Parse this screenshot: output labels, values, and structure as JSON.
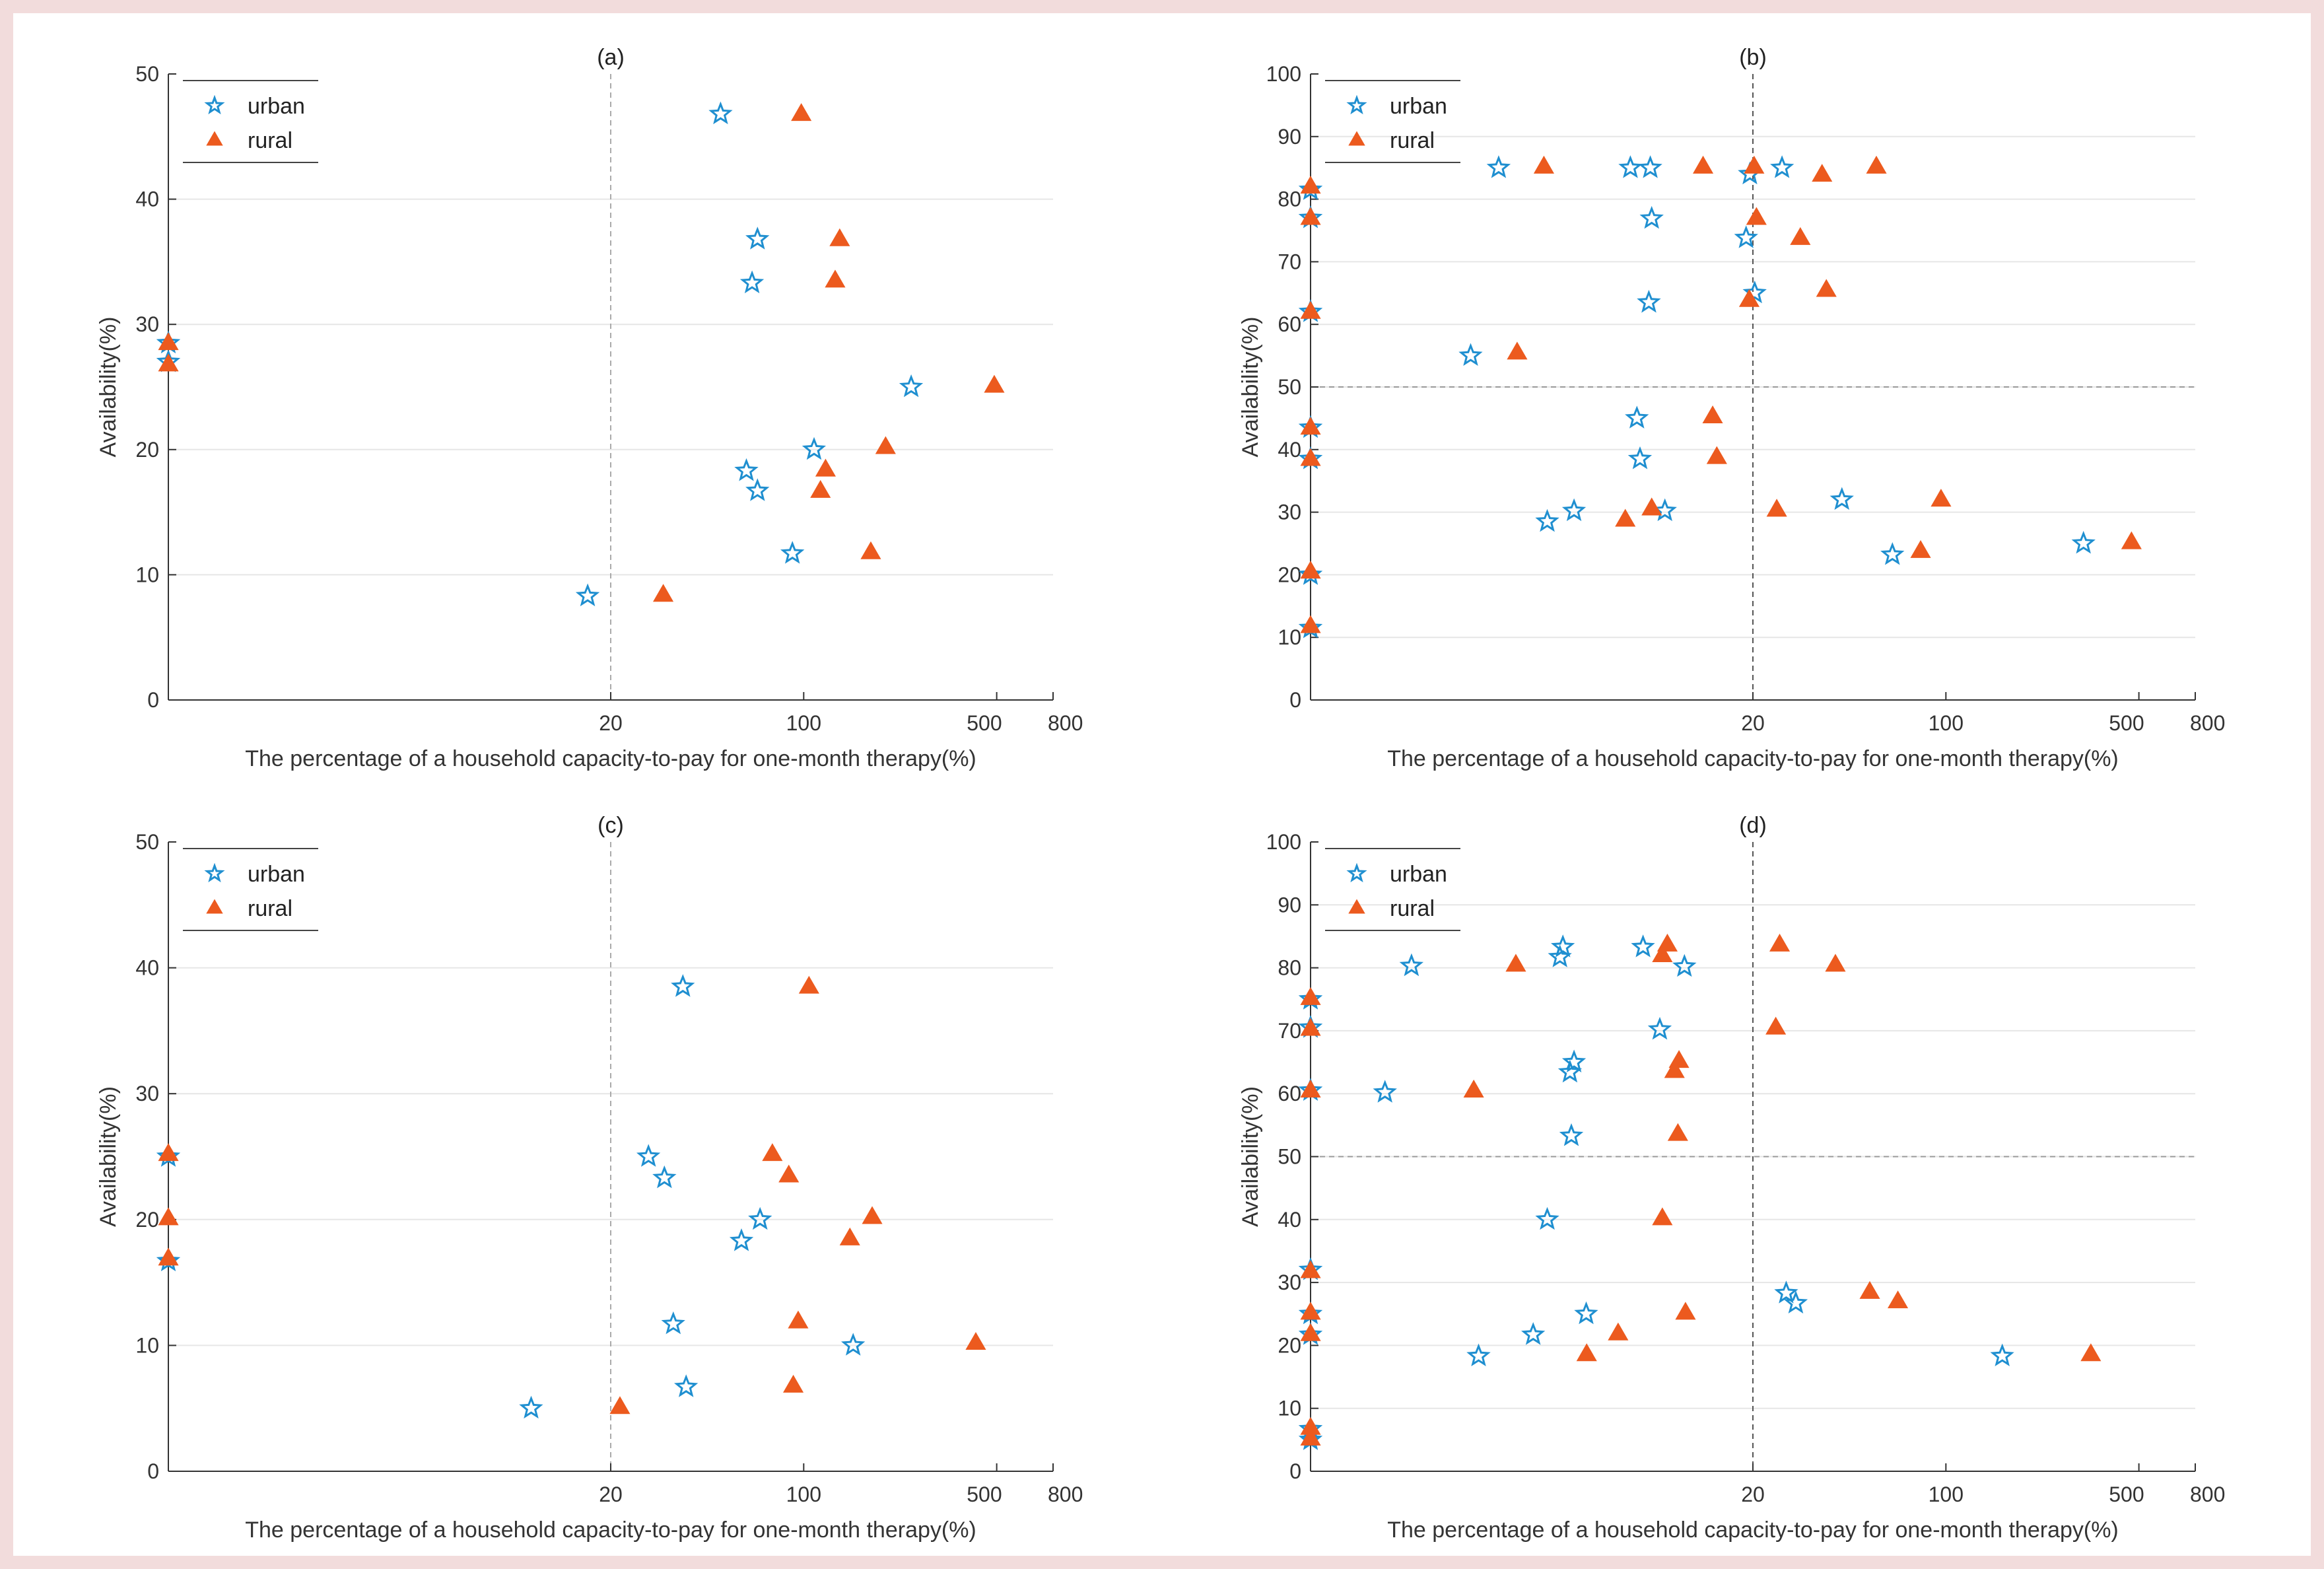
{
  "colors": {
    "background": "#f2dcdc",
    "urban": "#1f8fd0",
    "rural": "#ec5a1e",
    "grid": "#e6e6e6",
    "axis": "#333333"
  },
  "chart_data": [
    {
      "type": "scatter",
      "title": "(a)",
      "xlabel": "The percentage of a household capacity-to-pay for one-month therapy(%)",
      "ylabel": "Availability(%)",
      "xscale": "log",
      "xlim": [
        0.5,
        800
      ],
      "ylim": [
        0,
        50
      ],
      "xticks": [
        20,
        100,
        500,
        800
      ],
      "yticks": [
        0,
        10,
        20,
        30,
        40,
        50
      ],
      "xref": 20,
      "yref": null,
      "legend": [
        "urban",
        "rural"
      ],
      "legend_position": "top-left",
      "series": [
        {
          "name": "urban",
          "marker": "star",
          "points": [
            [
              0.5,
              27.0
            ],
            [
              0.5,
              28.5
            ],
            [
              16.5,
              8.3
            ],
            [
              50,
              46.8
            ],
            [
              68,
              36.8
            ],
            [
              65,
              33.3
            ],
            [
              62,
              18.3
            ],
            [
              68,
              16.7
            ],
            [
              91,
              11.7
            ],
            [
              109,
              20.0
            ],
            [
              245,
              25.0
            ]
          ]
        },
        {
          "name": "rural",
          "marker": "triangle",
          "points": [
            [
              0.5,
              26.8
            ],
            [
              0.5,
              28.5
            ],
            [
              31,
              8.4
            ],
            [
              98,
              46.8
            ],
            [
              135,
              36.8
            ],
            [
              130,
              33.5
            ],
            [
              198,
              20.2
            ],
            [
              120,
              18.4
            ],
            [
              115,
              16.7
            ],
            [
              175,
              11.8
            ],
            [
              490,
              25.1
            ]
          ]
        }
      ]
    },
    {
      "type": "scatter",
      "title": "(b)",
      "xlabel": "The percentage of a household capacity-to-pay for one-month therapy(%)",
      "ylabel": "Availability(%)",
      "xscale": "log",
      "xlim": [
        0.5,
        800
      ],
      "ylim": [
        0,
        100
      ],
      "xticks": [
        20,
        100,
        500,
        800
      ],
      "yticks": [
        0,
        10,
        20,
        30,
        40,
        50,
        60,
        70,
        80,
        90,
        100
      ],
      "xref": 20,
      "yref": 50,
      "legend": [
        "urban",
        "rural"
      ],
      "legend_position": "top-left",
      "series": [
        {
          "name": "urban",
          "marker": "star",
          "points": [
            [
              0.5,
              81.5
            ],
            [
              0.5,
              77.0
            ],
            [
              0.5,
              62.0
            ],
            [
              0.5,
              43.5
            ],
            [
              0.5,
              38.5
            ],
            [
              0.5,
              20.0
            ],
            [
              0.5,
              11.5
            ],
            [
              2.4,
              85.0
            ],
            [
              7.2,
              85.0
            ],
            [
              8.5,
              85.0
            ],
            [
              8.6,
              76.9
            ],
            [
              8.4,
              63.5
            ],
            [
              1.9,
              55.0
            ],
            [
              7.6,
              45.0
            ],
            [
              7.8,
              38.5
            ],
            [
              3.6,
              28.5
            ],
            [
              4.5,
              30.2
            ],
            [
              9.6,
              30.2
            ],
            [
              19.5,
              84.0
            ],
            [
              18.9,
              73.8
            ],
            [
              20.3,
              65.0
            ],
            [
              25.5,
              85.0
            ],
            [
              42,
              32.0
            ],
            [
              64,
              23.2
            ],
            [
              315,
              25.0
            ]
          ]
        },
        {
          "name": "rural",
          "marker": "triangle",
          "points": [
            [
              0.5,
              82.0
            ],
            [
              0.5,
              77.0
            ],
            [
              0.5,
              62.0
            ],
            [
              0.5,
              43.5
            ],
            [
              0.5,
              38.5
            ],
            [
              0.5,
              20.5
            ],
            [
              0.5,
              11.8
            ],
            [
              3.5,
              85.2
            ],
            [
              13.2,
              85.2
            ],
            [
              20.2,
              85.2
            ],
            [
              56,
              85.2
            ],
            [
              35.6,
              83.9
            ],
            [
              20.6,
              77.0
            ],
            [
              29.7,
              73.8
            ],
            [
              19.4,
              63.9
            ],
            [
              36.9,
              65.5
            ],
            [
              2.8,
              55.5
            ],
            [
              14.3,
              45.3
            ],
            [
              14.8,
              38.8
            ],
            [
              6.9,
              28.8
            ],
            [
              8.6,
              30.6
            ],
            [
              24.4,
              30.4
            ],
            [
              96,
              32.0
            ],
            [
              81,
              23.8
            ],
            [
              470,
              25.2
            ]
          ]
        }
      ]
    },
    {
      "type": "scatter",
      "title": "(c)",
      "xlabel": "The percentage of a household capacity-to-pay for one-month therapy(%)",
      "ylabel": "Availability(%)",
      "xscale": "log",
      "xlim": [
        0.5,
        800
      ],
      "ylim": [
        0,
        50
      ],
      "xticks": [
        20,
        100,
        500,
        800
      ],
      "yticks": [
        0,
        10,
        20,
        30,
        40,
        50
      ],
      "xref": 20,
      "yref": null,
      "legend": [
        "urban",
        "rural"
      ],
      "legend_position": "top-left",
      "series": [
        {
          "name": "urban",
          "marker": "star",
          "points": [
            [
              0.5,
              25.0
            ],
            [
              0.5,
              16.7
            ],
            [
              10.3,
              5.0
            ],
            [
              36.5,
              38.5
            ],
            [
              27.4,
              25.0
            ],
            [
              31.3,
              23.3
            ],
            [
              59.5,
              18.3
            ],
            [
              69.5,
              20.0
            ],
            [
              33.7,
              11.7
            ],
            [
              37.5,
              6.7
            ],
            [
              151,
              10.0
            ]
          ]
        },
        {
          "name": "rural",
          "marker": "triangle",
          "points": [
            [
              0.5,
              25.2
            ],
            [
              0.5,
              20.1
            ],
            [
              0.5,
              16.9
            ],
            [
              21.6,
              5.1
            ],
            [
              104.5,
              38.5
            ],
            [
              77,
              25.2
            ],
            [
              88.3,
              23.5
            ],
            [
              177,
              20.2
            ],
            [
              147,
              18.5
            ],
            [
              95.5,
              11.9
            ],
            [
              91.7,
              6.8
            ],
            [
              420,
              10.2
            ]
          ]
        }
      ]
    },
    {
      "type": "scatter",
      "title": "(d)",
      "xlabel": "The percentage of a household capacity-to-pay for one-month therapy(%)",
      "ylabel": "Availability(%)",
      "xscale": "log",
      "xlim": [
        0.5,
        800
      ],
      "ylim": [
        0,
        100
      ],
      "xticks": [
        20,
        100,
        500,
        800
      ],
      "yticks": [
        0,
        10,
        20,
        30,
        40,
        50,
        60,
        70,
        80,
        90,
        100
      ],
      "xref": 20,
      "yref": 50,
      "legend": [
        "urban",
        "rural"
      ],
      "legend_position": "top-left",
      "series": [
        {
          "name": "urban",
          "marker": "star",
          "points": [
            [
              0.5,
              75.0
            ],
            [
              0.5,
              70.5
            ],
            [
              0.5,
              60.5
            ],
            [
              0.5,
              32.0
            ],
            [
              0.5,
              25.0
            ],
            [
              0.5,
              21.7
            ],
            [
              0.5,
              6.7
            ],
            [
              0.5,
              5.0
            ],
            [
              1.16,
              80.3
            ],
            [
              0.93,
              60.2
            ],
            [
              4.1,
              83.3
            ],
            [
              4.0,
              81.7
            ],
            [
              8.0,
              83.3
            ],
            [
              11.3,
              80.2
            ],
            [
              9.2,
              70.2
            ],
            [
              4.5,
              65.0
            ],
            [
              4.35,
              63.4
            ],
            [
              4.4,
              53.3
            ],
            [
              3.6,
              40.0
            ],
            [
              4.98,
              25.0
            ],
            [
              2.03,
              18.3
            ],
            [
              3.2,
              21.7
            ],
            [
              26.4,
              28.3
            ],
            [
              28.6,
              26.7
            ],
            [
              160,
              18.3
            ]
          ]
        },
        {
          "name": "rural",
          "marker": "triangle",
          "points": [
            [
              0.5,
              75.2
            ],
            [
              0.5,
              70.3
            ],
            [
              0.5,
              60.5
            ],
            [
              0.5,
              31.8
            ],
            [
              0.5,
              25.2
            ],
            [
              0.5,
              21.8
            ],
            [
              0.5,
              6.9
            ],
            [
              0.5,
              5.2
            ],
            [
              2.77,
              80.5
            ],
            [
              1.95,
              60.5
            ],
            [
              9.8,
              83.7
            ],
            [
              9.4,
              82.0
            ],
            [
              25.0,
              83.7
            ],
            [
              39.8,
              80.5
            ],
            [
              24.2,
              70.5
            ],
            [
              10.8,
              65.2
            ],
            [
              10.4,
              63.6
            ],
            [
              10.7,
              53.6
            ],
            [
              9.4,
              40.2
            ],
            [
              11.4,
              25.2
            ],
            [
              5.0,
              18.6
            ],
            [
              6.5,
              21.9
            ],
            [
              53,
              28.5
            ],
            [
              67,
              27.0
            ],
            [
              335,
              18.6
            ]
          ]
        }
      ]
    }
  ]
}
